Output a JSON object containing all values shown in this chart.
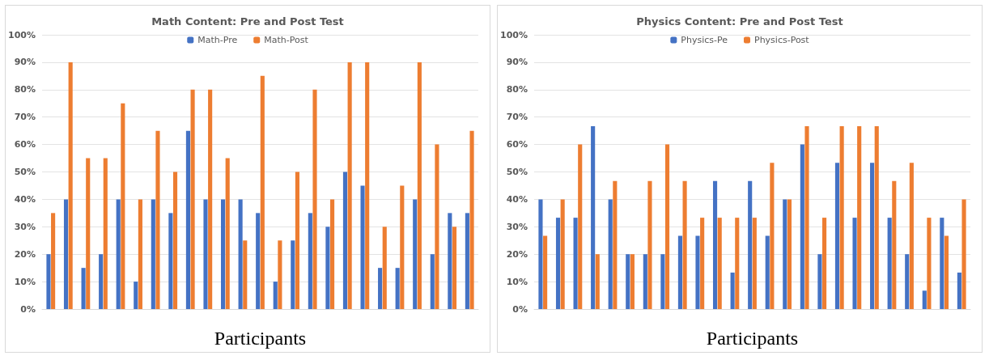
{
  "chart_data": [
    {
      "type": "bar",
      "title": "Math Content: Pre and Post Test",
      "xlabel": "Participants",
      "categories": [
        null,
        null,
        null,
        null,
        null,
        null,
        null,
        null,
        null,
        null,
        null,
        null,
        null,
        null,
        null,
        null,
        null,
        null,
        null,
        null,
        null,
        null,
        null,
        null,
        null
      ],
      "series": [
        {
          "name": "Math-Pre",
          "color": "#4472c4",
          "values": [
            20,
            40,
            15,
            20,
            40,
            10,
            40,
            35,
            65,
            40,
            40,
            40,
            35,
            10,
            25,
            35,
            30,
            50,
            45,
            15,
            15,
            40,
            20,
            35,
            35
          ]
        },
        {
          "name": "Math-Post",
          "color": "#ed7d31",
          "values": [
            35,
            90,
            55,
            55,
            75,
            40,
            65,
            50,
            80,
            80,
            55,
            25,
            85,
            25,
            50,
            80,
            40,
            90,
            90,
            30,
            45,
            90,
            60,
            30,
            65
          ]
        }
      ],
      "ylim": [
        0,
        100
      ],
      "yticks": [
        {
          "value": 0,
          "label": "0%"
        },
        {
          "value": 10,
          "label": "10%"
        },
        {
          "value": 20,
          "label": "20%"
        },
        {
          "value": 30,
          "label": "30%"
        },
        {
          "value": 40,
          "label": "40%"
        },
        {
          "value": 50,
          "label": "50%"
        },
        {
          "value": 60,
          "label": "60%"
        },
        {
          "value": 70,
          "label": "70%"
        },
        {
          "value": 80,
          "label": "80%"
        },
        {
          "value": 90,
          "label": "90%"
        },
        {
          "value": 100,
          "label": "100%"
        }
      ],
      "grid": "y",
      "legend": "top"
    },
    {
      "type": "bar",
      "title": "Physics Content: Pre and Post Test",
      "xlabel": "Participants",
      "categories": [
        null,
        null,
        null,
        null,
        null,
        null,
        null,
        null,
        null,
        null,
        null,
        null,
        null,
        null,
        null,
        null,
        null,
        null,
        null,
        null,
        null,
        null,
        null,
        null,
        null
      ],
      "series": [
        {
          "name": "Physics-Pe",
          "color": "#4472c4",
          "values": [
            40,
            33.3,
            33.3,
            66.7,
            40,
            20,
            20,
            20,
            26.7,
            26.7,
            46.7,
            13.3,
            46.7,
            26.7,
            40,
            60,
            20,
            53.3,
            33.3,
            53.3,
            33.3,
            20,
            6.7,
            33.3,
            13.3
          ]
        },
        {
          "name": "Physics-Post",
          "color": "#ed7d31",
          "values": [
            26.7,
            40,
            60,
            20,
            46.7,
            20,
            46.7,
            60,
            46.7,
            33.3,
            33.3,
            33.3,
            33.3,
            53.3,
            40,
            66.7,
            33.3,
            66.7,
            66.7,
            66.7,
            46.7,
            53.3,
            33.3,
            26.7,
            40
          ]
        }
      ],
      "ylim": [
        0,
        100
      ],
      "yticks": [
        {
          "value": 0,
          "label": "0%"
        },
        {
          "value": 10,
          "label": "10%"
        },
        {
          "value": 20,
          "label": "20%"
        },
        {
          "value": 30,
          "label": "30%"
        },
        {
          "value": 40,
          "label": "40%"
        },
        {
          "value": 50,
          "label": "50%"
        },
        {
          "value": 60,
          "label": "60%"
        },
        {
          "value": 70,
          "label": "70%"
        },
        {
          "value": 80,
          "label": "80%"
        },
        {
          "value": 90,
          "label": "90%"
        },
        {
          "value": 100,
          "label": "100%"
        }
      ],
      "grid": "y",
      "legend": "top"
    }
  ]
}
